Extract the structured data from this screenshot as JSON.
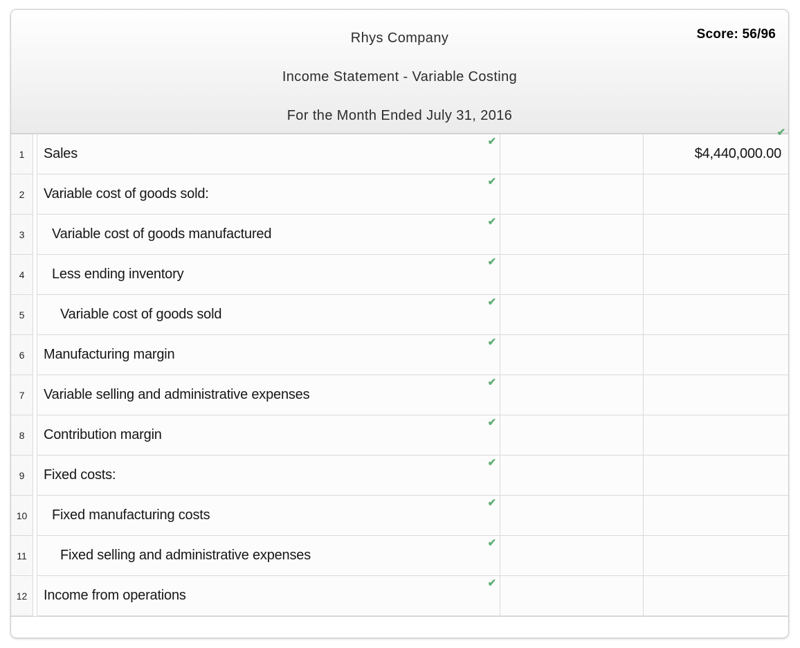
{
  "header": {
    "company": "Rhys Company",
    "statement_title": "Income Statement - Variable Costing",
    "period": "For the Month Ended July 31, 2016",
    "score_label": "Score: 56/96"
  },
  "icons": {
    "check": "✔"
  },
  "colors": {
    "check_green": "#5fae74",
    "header_gradient_top": "#ffffff",
    "header_gradient_bottom": "#ebebeb",
    "cell_border": "#dadada",
    "panel_border": "#cbcbcb"
  },
  "table": {
    "rows": [
      {
        "num": "1",
        "label": "Sales",
        "indent": 0,
        "label_check": true,
        "middle": "",
        "amount": "$4,440,000.00",
        "amount_check": true
      },
      {
        "num": "2",
        "label": "Variable cost of goods sold:",
        "indent": 0,
        "label_check": true,
        "middle": "",
        "amount": "",
        "amount_check": false
      },
      {
        "num": "3",
        "label": "Variable cost of goods manufactured",
        "indent": 1,
        "label_check": true,
        "middle": "",
        "amount": "",
        "amount_check": false
      },
      {
        "num": "4",
        "label": "Less ending inventory",
        "indent": 1,
        "label_check": true,
        "middle": "",
        "amount": "",
        "amount_check": false
      },
      {
        "num": "5",
        "label": "Variable cost of goods sold",
        "indent": 2,
        "label_check": true,
        "middle": "",
        "amount": "",
        "amount_check": false
      },
      {
        "num": "6",
        "label": "Manufacturing margin",
        "indent": 0,
        "label_check": true,
        "middle": "",
        "amount": "",
        "amount_check": false
      },
      {
        "num": "7",
        "label": "Variable selling and administrative expenses",
        "indent": 0,
        "label_check": true,
        "middle": "",
        "amount": "",
        "amount_check": false
      },
      {
        "num": "8",
        "label": "Contribution margin",
        "indent": 0,
        "label_check": true,
        "middle": "",
        "amount": "",
        "amount_check": false
      },
      {
        "num": "9",
        "label": "Fixed costs:",
        "indent": 0,
        "label_check": true,
        "middle": "",
        "amount": "",
        "amount_check": false
      },
      {
        "num": "10",
        "label": "Fixed manufacturing costs",
        "indent": 1,
        "label_check": true,
        "middle": "",
        "amount": "",
        "amount_check": false
      },
      {
        "num": "11",
        "label": "Fixed selling and administrative expenses",
        "indent": 2,
        "label_check": true,
        "middle": "",
        "amount": "",
        "amount_check": false
      },
      {
        "num": "12",
        "label": "Income from operations",
        "indent": 0,
        "label_check": true,
        "middle": "",
        "amount": "",
        "amount_check": false
      }
    ]
  }
}
